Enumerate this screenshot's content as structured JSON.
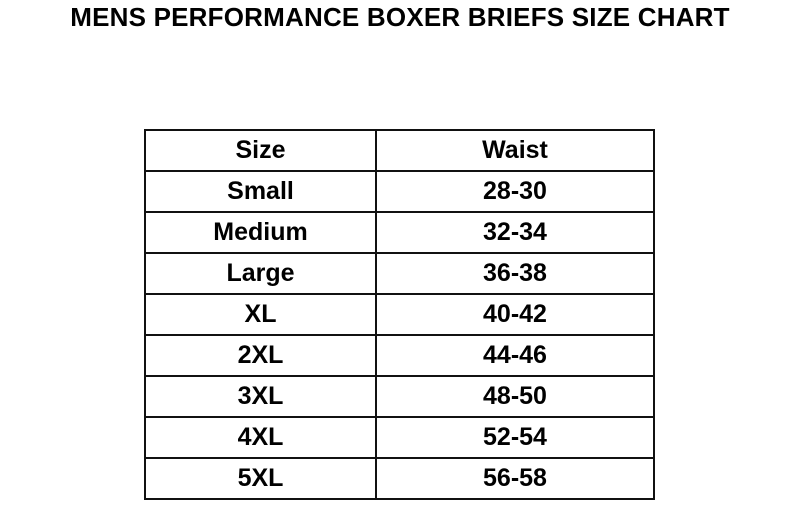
{
  "title": "MENS PERFORMANCE BOXER BRIEFS SIZE CHART",
  "table": {
    "headers": [
      "Size",
      "Waist"
    ],
    "rows": [
      [
        "Small",
        "28-30"
      ],
      [
        "Medium",
        "32-34"
      ],
      [
        "Large",
        "36-38"
      ],
      [
        "XL",
        "40-42"
      ],
      [
        "2XL",
        "44-46"
      ],
      [
        "3XL",
        "48-50"
      ],
      [
        "4XL",
        "52-54"
      ],
      [
        "5XL",
        "56-58"
      ]
    ]
  }
}
